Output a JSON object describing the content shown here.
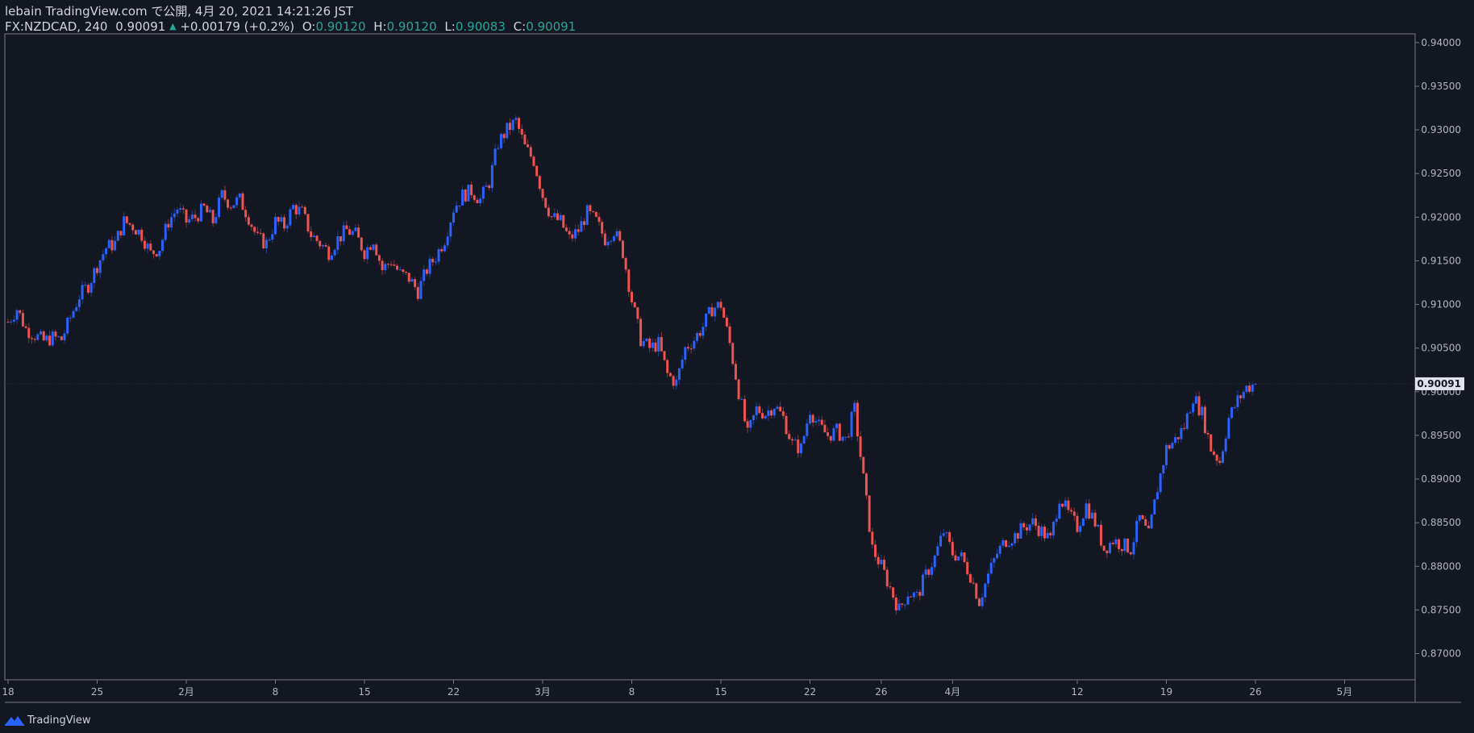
{
  "header": {
    "publisher": "lebain TradingView.com で公開, 4月 20, 2021 14:21:26 JST",
    "symbol": "FX:NZDCAD, 240",
    "last": "0.90091",
    "arrow": "▲",
    "change": "+0.00179 (+0.2%)",
    "o_label": "O:",
    "o_value": "0.90120",
    "h_label": "H:",
    "h_value": "0.90120",
    "l_label": "L:",
    "l_value": "0.90083",
    "c_label": "C:",
    "c_value": "0.90091"
  },
  "footer": {
    "brand": "TradingView",
    "logo_icon": "tradingview-logo-icon"
  },
  "colors": {
    "background": "#131722",
    "up": "#2962ff",
    "down": "#ef5350",
    "axis_text": "#b2b5be",
    "border": "#787b86",
    "price_tag": "#e0e3eb"
  },
  "chart_data": {
    "type": "candlestick",
    "title": "",
    "xlabel": "",
    "ylabel": "",
    "ylim": [
      0.867,
      0.941
    ],
    "y_ticks": [
      "0.94000",
      "0.93500",
      "0.93000",
      "0.92500",
      "0.92000",
      "0.91500",
      "0.91000",
      "0.90500",
      "0.90000",
      "0.89500",
      "0.89000",
      "0.88500",
      "0.88000",
      "0.87500",
      "0.87000"
    ],
    "x_ticks": [
      {
        "label": "18",
        "pos": 0
      },
      {
        "label": "25",
        "pos": 5
      },
      {
        "label": "2月",
        "pos": 10
      },
      {
        "label": "8",
        "pos": 15
      },
      {
        "label": "15",
        "pos": 20
      },
      {
        "label": "22",
        "pos": 25
      },
      {
        "label": "3月",
        "pos": 30
      },
      {
        "label": "8",
        "pos": 35
      },
      {
        "label": "15",
        "pos": 40
      },
      {
        "label": "22",
        "pos": 45
      },
      {
        "label": "26",
        "pos": 49
      },
      {
        "label": "4月",
        "pos": 53
      },
      {
        "label": "12",
        "pos": 60
      },
      {
        "label": "19",
        "pos": 65
      },
      {
        "label": "26",
        "pos": 70
      },
      {
        "label": "5月",
        "pos": 75
      }
    ],
    "x_span_days": 78.5,
    "current_price_label": "0.90091",
    "current_price": 0.90091,
    "series": [
      {
        "name": "NZDCAD",
        "closes": [
          {
            "d": 0,
            "c": 0.908
          },
          {
            "d": 0.5,
            "c": 0.9095
          },
          {
            "d": 1,
            "c": 0.9072
          },
          {
            "d": 1.5,
            "c": 0.9065
          },
          {
            "d": 2,
            "c": 0.9058
          },
          {
            "d": 2.5,
            "c": 0.9062
          },
          {
            "d": 3,
            "c": 0.906
          },
          {
            "d": 3.5,
            "c": 0.9085
          },
          {
            "d": 4,
            "c": 0.911
          },
          {
            "d": 4.5,
            "c": 0.9122
          },
          {
            "d": 5,
            "c": 0.9145
          },
          {
            "d": 5.5,
            "c": 0.9165
          },
          {
            "d": 6,
            "c": 0.917
          },
          {
            "d": 6.5,
            "c": 0.9195
          },
          {
            "d": 7,
            "c": 0.919
          },
          {
            "d": 7.5,
            "c": 0.918
          },
          {
            "d": 8,
            "c": 0.9158
          },
          {
            "d": 8.5,
            "c": 0.9165
          },
          {
            "d": 9,
            "c": 0.9195
          },
          {
            "d": 9.5,
            "c": 0.921
          },
          {
            "d": 10,
            "c": 0.9195
          },
          {
            "d": 10.5,
            "c": 0.92
          },
          {
            "d": 11,
            "c": 0.921
          },
          {
            "d": 11.5,
            "c": 0.9195
          },
          {
            "d": 12,
            "c": 0.9225
          },
          {
            "d": 12.5,
            "c": 0.9215
          },
          {
            "d": 13,
            "c": 0.922
          },
          {
            "d": 13.5,
            "c": 0.92
          },
          {
            "d": 14,
            "c": 0.9175
          },
          {
            "d": 14.5,
            "c": 0.917
          },
          {
            "d": 15,
            "c": 0.9195
          },
          {
            "d": 15.5,
            "c": 0.919
          },
          {
            "d": 16,
            "c": 0.9212
          },
          {
            "d": 16.5,
            "c": 0.9205
          },
          {
            "d": 17,
            "c": 0.918
          },
          {
            "d": 17.5,
            "c": 0.917
          },
          {
            "d": 18,
            "c": 0.916
          },
          {
            "d": 18.5,
            "c": 0.9175
          },
          {
            "d": 19,
            "c": 0.9185
          },
          {
            "d": 19.5,
            "c": 0.918
          },
          {
            "d": 20,
            "c": 0.916
          },
          {
            "d": 20.5,
            "c": 0.9175
          },
          {
            "d": 21,
            "c": 0.914
          },
          {
            "d": 21.5,
            "c": 0.915
          },
          {
            "d": 22,
            "c": 0.9135
          },
          {
            "d": 22.5,
            "c": 0.913
          },
          {
            "d": 23,
            "c": 0.9115
          },
          {
            "d": 23.5,
            "c": 0.914
          },
          {
            "d": 24,
            "c": 0.9155
          },
          {
            "d": 24.5,
            "c": 0.9175
          },
          {
            "d": 25,
            "c": 0.921
          },
          {
            "d": 25.5,
            "c": 0.9225
          },
          {
            "d": 26,
            "c": 0.923
          },
          {
            "d": 26.5,
            "c": 0.922
          },
          {
            "d": 27,
            "c": 0.924
          },
          {
            "d": 27.5,
            "c": 0.9285
          },
          {
            "d": 28,
            "c": 0.93
          },
          {
            "d": 28.5,
            "c": 0.931
          },
          {
            "d": 29,
            "c": 0.928
          },
          {
            "d": 29.5,
            "c": 0.9265
          },
          {
            "d": 30,
            "c": 0.9225
          },
          {
            "d": 30.5,
            "c": 0.92
          },
          {
            "d": 31,
            "c": 0.9195
          },
          {
            "d": 31.5,
            "c": 0.9175
          },
          {
            "d": 32,
            "c": 0.9185
          },
          {
            "d": 32.5,
            "c": 0.9205
          },
          {
            "d": 33,
            "c": 0.9195
          },
          {
            "d": 33.5,
            "c": 0.9175
          },
          {
            "d": 34,
            "c": 0.9185
          },
          {
            "d": 34.5,
            "c": 0.916
          },
          {
            "d": 35,
            "c": 0.9105
          },
          {
            "d": 35.5,
            "c": 0.906
          },
          {
            "d": 36,
            "c": 0.905
          },
          {
            "d": 36.5,
            "c": 0.9055
          },
          {
            "d": 37,
            "c": 0.902
          },
          {
            "d": 37.5,
            "c": 0.901
          },
          {
            "d": 38,
            "c": 0.905
          },
          {
            "d": 38.5,
            "c": 0.906
          },
          {
            "d": 39,
            "c": 0.9075
          },
          {
            "d": 39.5,
            "c": 0.9095
          },
          {
            "d": 40,
            "c": 0.91
          },
          {
            "d": 40.5,
            "c": 0.9055
          },
          {
            "d": 41,
            "c": 0.9
          },
          {
            "d": 41.5,
            "c": 0.895
          },
          {
            "d": 42,
            "c": 0.898
          },
          {
            "d": 42.5,
            "c": 0.8975
          },
          {
            "d": 43,
            "c": 0.8985
          },
          {
            "d": 43.5,
            "c": 0.897
          },
          {
            "d": 44,
            "c": 0.894
          },
          {
            "d": 44.5,
            "c": 0.8935
          },
          {
            "d": 45,
            "c": 0.898
          },
          {
            "d": 45.5,
            "c": 0.896
          },
          {
            "d": 46,
            "c": 0.895
          },
          {
            "d": 46.5,
            "c": 0.8955
          },
          {
            "d": 47,
            "c": 0.8945
          },
          {
            "d": 47.5,
            "c": 0.898
          },
          {
            "d": 48,
            "c": 0.89
          },
          {
            "d": 48.5,
            "c": 0.882
          },
          {
            "d": 49,
            "c": 0.88
          },
          {
            "d": 49.5,
            "c": 0.8775
          },
          {
            "d": 50,
            "c": 0.875
          },
          {
            "d": 50.5,
            "c": 0.877
          },
          {
            "d": 51,
            "c": 0.8765
          },
          {
            "d": 51.5,
            "c": 0.879
          },
          {
            "d": 52,
            "c": 0.881
          },
          {
            "d": 52.5,
            "c": 0.884
          },
          {
            "d": 53,
            "c": 0.8815
          },
          {
            "d": 53.5,
            "c": 0.881
          },
          {
            "d": 54,
            "c": 0.879
          },
          {
            "d": 54.5,
            "c": 0.876
          },
          {
            "d": 55,
            "c": 0.879
          },
          {
            "d": 55.5,
            "c": 0.8815
          },
          {
            "d": 56,
            "c": 0.883
          },
          {
            "d": 56.5,
            "c": 0.8835
          },
          {
            "d": 57,
            "c": 0.8845
          },
          {
            "d": 57.5,
            "c": 0.885
          },
          {
            "d": 58,
            "c": 0.884
          },
          {
            "d": 58.5,
            "c": 0.883
          },
          {
            "d": 59,
            "c": 0.888
          },
          {
            "d": 59.5,
            "c": 0.886
          },
          {
            "d": 60,
            "c": 0.8845
          },
          {
            "d": 60.5,
            "c": 0.887
          },
          {
            "d": 61,
            "c": 0.885
          },
          {
            "d": 61.5,
            "c": 0.882
          },
          {
            "d": 62,
            "c": 0.883
          },
          {
            "d": 62.5,
            "c": 0.8825
          },
          {
            "d": 63,
            "c": 0.882
          },
          {
            "d": 63.5,
            "c": 0.8855
          },
          {
            "d": 64,
            "c": 0.8835
          },
          {
            "d": 64.5,
            "c": 0.889
          },
          {
            "d": 65,
            "c": 0.8935
          },
          {
            "d": 65.5,
            "c": 0.8945
          },
          {
            "d": 66,
            "c": 0.896
          },
          {
            "d": 66.5,
            "c": 0.8995
          },
          {
            "d": 67,
            "c": 0.8975
          },
          {
            "d": 67.5,
            "c": 0.8935
          },
          {
            "d": 68,
            "c": 0.892
          },
          {
            "d": 68.5,
            "c": 0.897
          },
          {
            "d": 69,
            "c": 0.899
          },
          {
            "d": 69.5,
            "c": 0.9005
          },
          {
            "d": 70,
            "c": 0.90091
          }
        ]
      }
    ]
  }
}
